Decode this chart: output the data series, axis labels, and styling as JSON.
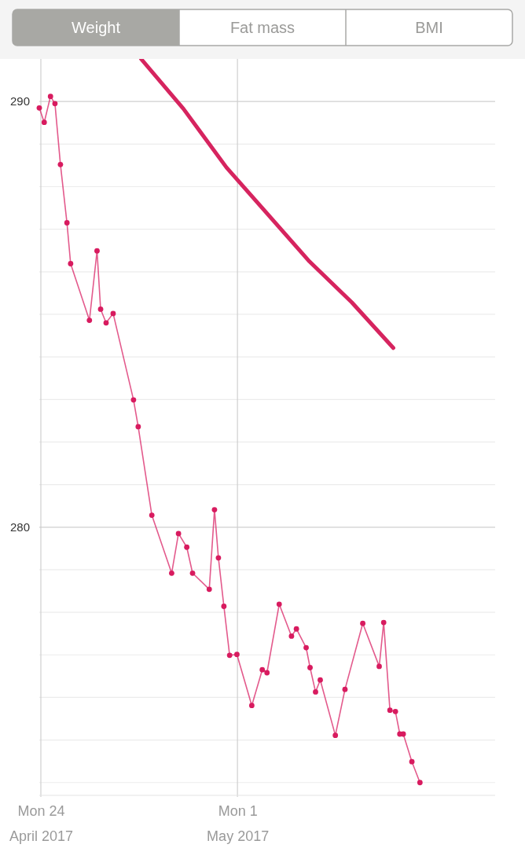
{
  "chart_data": {
    "type": "line",
    "annotations": [
      "Weight",
      "Fat mass",
      "BMI"
    ],
    "xlim": [
      "2017-04-23T22:40",
      "2017-05-10T04:10"
    ],
    "xticks": [
      {
        "value": "2017-04-24",
        "label": "Mon 24\nApril 2017"
      },
      {
        "value": "2017-05-01",
        "label": "Mon 1\nMay 2017"
      }
    ],
    "ylim": [
      273.7,
      291
    ],
    "yticks": [
      {
        "value": 274,
        "label": null
      },
      {
        "value": 275,
        "label": null
      },
      {
        "value": 276,
        "label": null
      },
      {
        "value": 277,
        "label": null
      },
      {
        "value": 278,
        "label": null
      },
      {
        "value": 279,
        "label": null
      },
      280,
      {
        "value": 281,
        "label": null
      },
      {
        "value": 282,
        "label": null
      },
      {
        "value": 283,
        "label": null
      },
      {
        "value": 284,
        "label": null
      },
      {
        "value": 285,
        "label": null
      },
      {
        "value": 286,
        "label": null
      },
      {
        "value": 287,
        "label": null
      },
      {
        "value": 288,
        "label": null
      },
      {
        "value": 289,
        "label": null
      },
      290
    ],
    "grid": true,
    "series": [
      {
        "color": "#d81b5f",
        "marker": "circle",
        "x": [
          "2017-04-23T22:40",
          "2017-04-24T02:53",
          "2017-04-24T08:14",
          "2017-04-24T12:03",
          "2017-04-24T16:44",
          "2017-04-24T22:18",
          "2017-04-25T01:26",
          "2017-04-25T17:30",
          "2017-04-26T00:00",
          "2017-04-26T03:04",
          "2017-04-26T07:45",
          "2017-04-26T13:46",
          "2017-04-27T07:11",
          "2017-04-27T11:11",
          "2017-04-27T22:50",
          "2017-04-28T15:46",
          "2017-04-28T21:36",
          "2017-04-29T04:41",
          "2017-04-29T09:38",
          "2017-04-29T23:54",
          "2017-04-30T04:22",
          "2017-04-30T07:43",
          "2017-04-30T12:24",
          "2017-04-30T17:18",
          "2017-04-30T23:31",
          "2017-05-01T12:14",
          "2017-05-01T21:12",
          "2017-05-02T01:13",
          "2017-05-02T11:40",
          "2017-05-02T22:10",
          "2017-05-03T02:22",
          "2017-05-03T10:41",
          "2017-05-03T14:02",
          "2017-05-03T18:43",
          "2017-05-03T22:44",
          "2017-05-04T11:38",
          "2017-05-04T19:52",
          "2017-05-05T11:04",
          "2017-05-06T01:07",
          "2017-05-06T04:56",
          "2017-05-06T10:17",
          "2017-05-06T14:58",
          "2017-05-06T18:43",
          "2017-05-06T21:40",
          "2017-05-07T05:02",
          "2017-05-07T11:55"
        ],
        "values": [
          289.85,
          289.51,
          290.12,
          289.95,
          288.52,
          287.15,
          286.19,
          284.86,
          286.49,
          285.12,
          284.8,
          285.02,
          282.99,
          282.36,
          280.28,
          278.92,
          279.85,
          279.53,
          278.92,
          278.54,
          280.41,
          279.28,
          278.14,
          276.99,
          277.01,
          275.81,
          276.65,
          276.58,
          278.19,
          277.44,
          277.61,
          277.17,
          276.7,
          276.13,
          276.41,
          275.11,
          276.19,
          277.74,
          276.73,
          277.76,
          275.7,
          275.67,
          275.14,
          275.14,
          274.49,
          274.0
        ]
      },
      {
        "type": "line",
        "color": "#d6245f",
        "marker": "none",
        "x": [
          "2017-04-27T13:39",
          "2017-04-29T01:48",
          "2017-04-30T14:37",
          "2017-05-03T13:34",
          "2017-05-05T01:42",
          "2017-05-06T13:10"
        ],
        "values": [
          291.0,
          289.83,
          288.45,
          286.24,
          285.28,
          284.21
        ]
      }
    ]
  }
}
